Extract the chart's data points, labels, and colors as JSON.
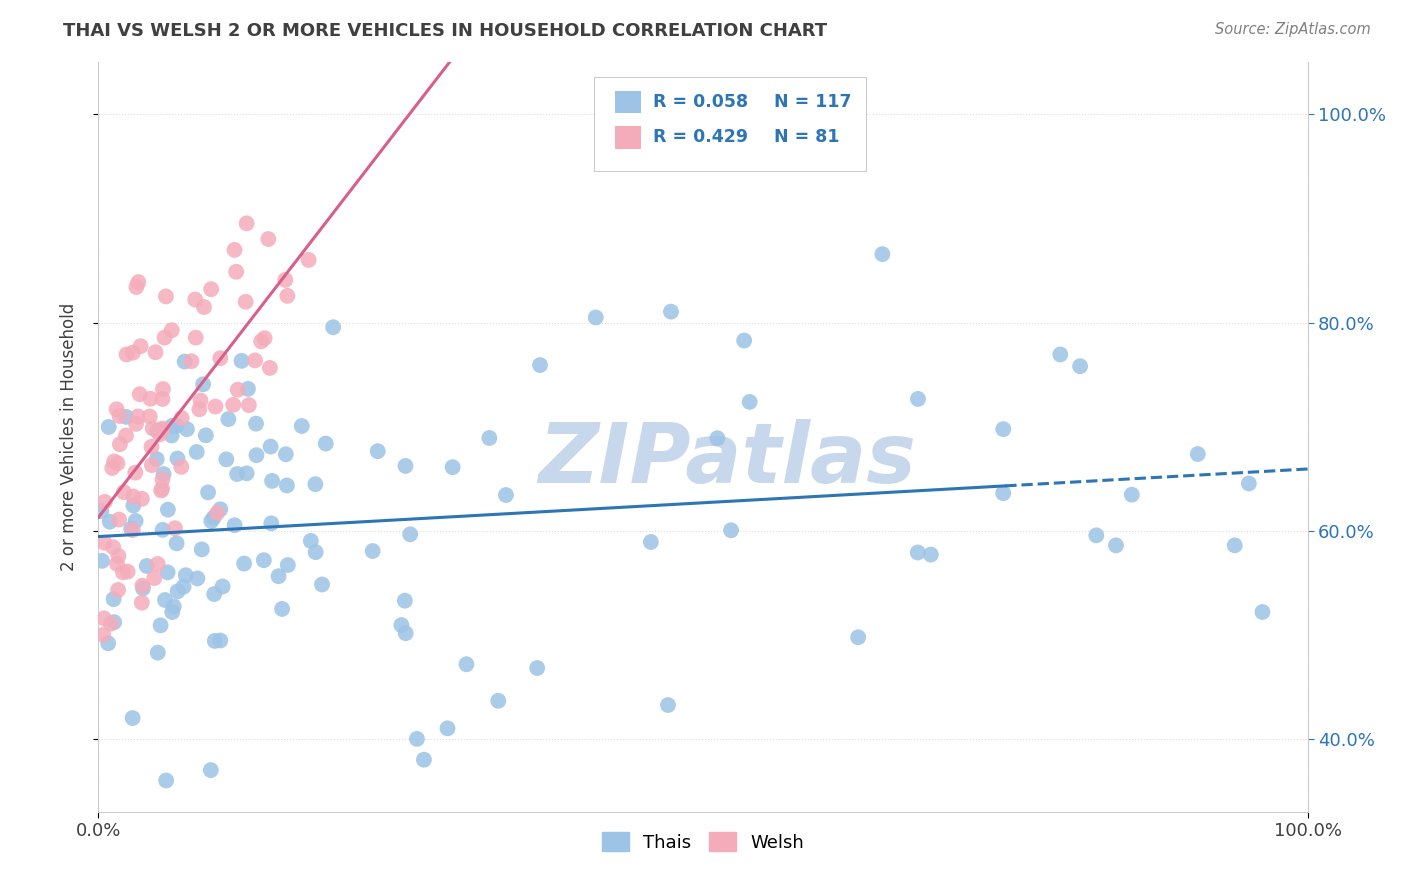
{
  "title": "THAI VS WELSH 2 OR MORE VEHICLES IN HOUSEHOLD CORRELATION CHART",
  "source_text": "Source: ZipAtlas.com",
  "ylabel": "2 or more Vehicles in Household",
  "xlim": [
    0.0,
    1.0
  ],
  "ylim": [
    0.33,
    1.05
  ],
  "yticks": [
    0.4,
    0.6,
    0.8,
    1.0
  ],
  "ytick_labels": [
    "40.0%",
    "60.0%",
    "80.0%",
    "100.0%"
  ],
  "legend_R_thai": "0.058",
  "legend_N_thai": "117",
  "legend_R_welsh": "0.429",
  "legend_N_welsh": "81",
  "thai_color": "#9DC3E6",
  "welsh_color": "#F4ACBA",
  "thai_line_color": "#2E75B6",
  "welsh_line_color": "#D95F8A",
  "legend_text_color": "#2E75B6",
  "right_tick_color": "#2E75B6",
  "watermark": "ZIPatlas",
  "watermark_color": "#C8D8EC",
  "background_color": "#FFFFFF",
  "grid_color": "#DDDDDD",
  "title_color": "#404040",
  "source_color": "#808080"
}
